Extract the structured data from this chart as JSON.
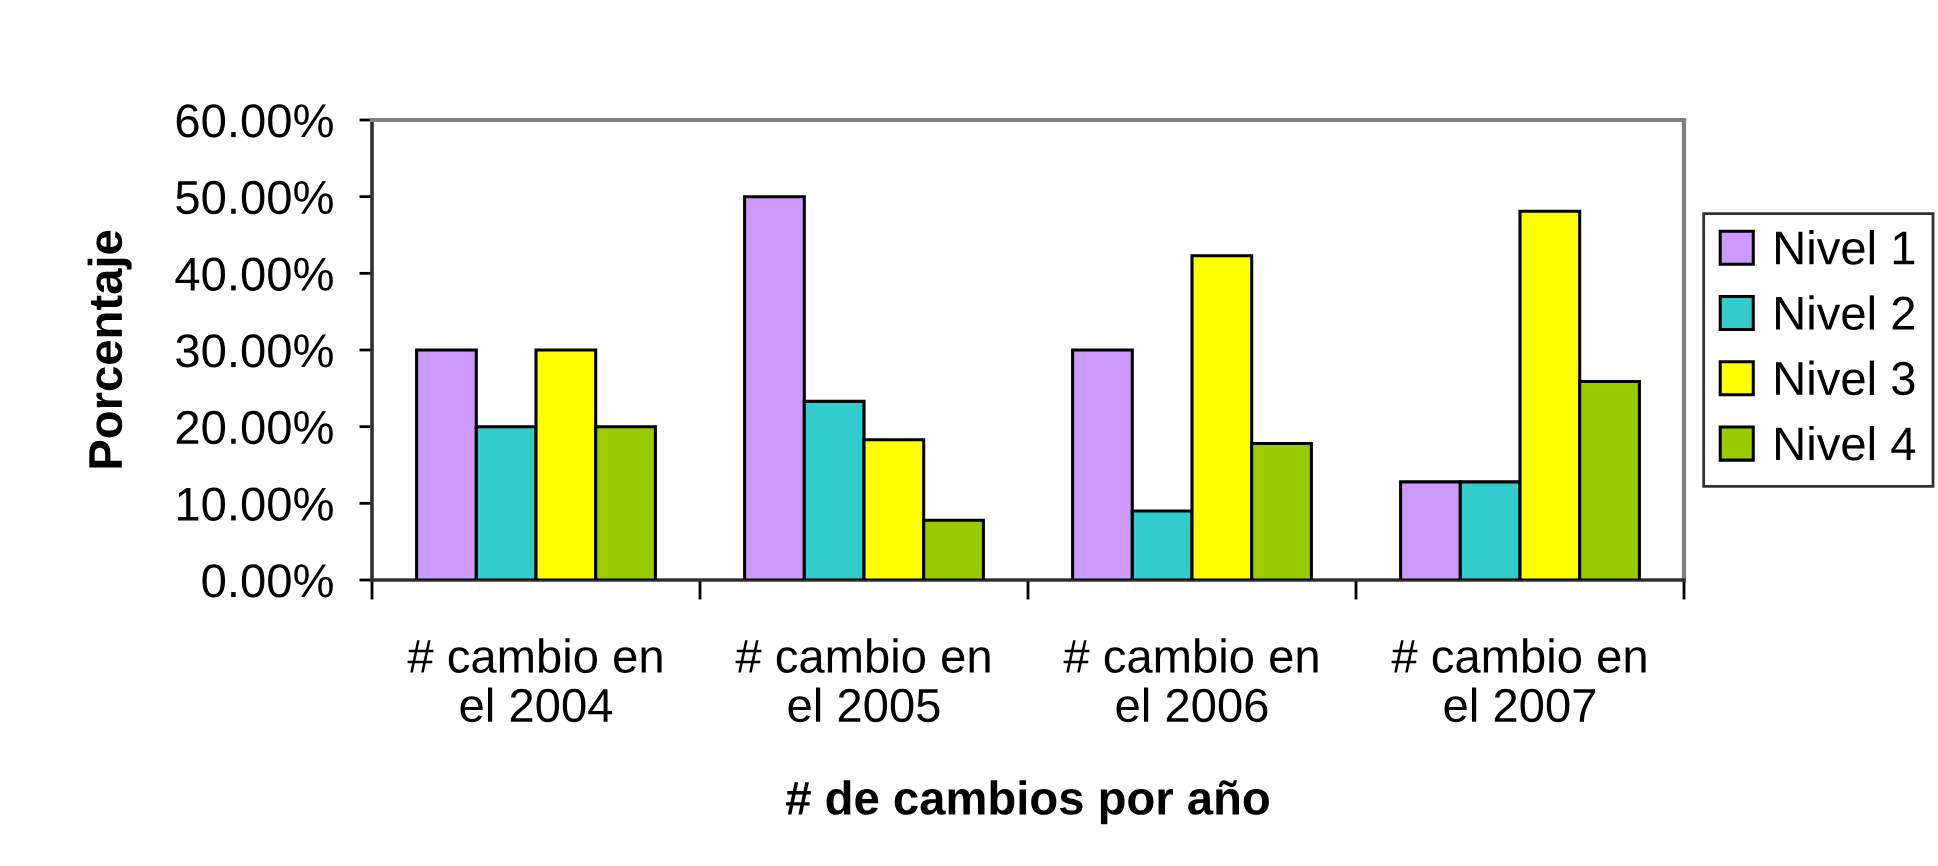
{
  "chart_data": {
    "type": "bar",
    "xlabel": "# de cambios por año",
    "ylabel": "Porcentaje",
    "categories": [
      "# cambio en\nel 2004",
      "# cambio en\nel 2005",
      "# cambio en\nel 2006",
      "# cambio en\nel 2007"
    ],
    "series": [
      {
        "name": "Nivel 1",
        "color": "#cc99ff",
        "values": [
          30,
          50,
          30,
          12.8
        ]
      },
      {
        "name": "Nivel 2",
        "color": "#33cccc",
        "values": [
          20,
          23.3,
          9,
          12.8
        ]
      },
      {
        "name": "Nivel 3",
        "color": "#ffff00",
        "values": [
          30,
          18.3,
          42.3,
          48.1
        ]
      },
      {
        "name": "Nivel 4",
        "color": "#99cc00",
        "values": [
          20,
          7.8,
          17.8,
          25.9
        ]
      }
    ],
    "ylim": [
      0,
      60
    ],
    "yticks": [
      {
        "value": 0,
        "label": "0.00%"
      },
      {
        "value": 10,
        "label": "10.00%"
      },
      {
        "value": 20,
        "label": "20.00%"
      },
      {
        "value": 30,
        "label": "30.00%"
      },
      {
        "value": 40,
        "label": "40.00%"
      },
      {
        "value": 50,
        "label": "50.00%"
      },
      {
        "value": 60,
        "label": "60.00%"
      }
    ],
    "legend": "right"
  }
}
